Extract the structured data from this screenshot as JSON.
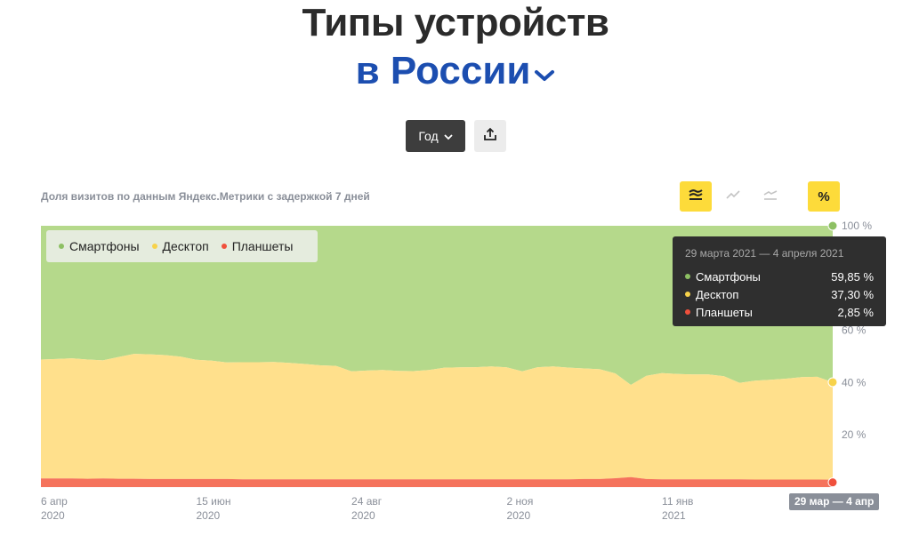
{
  "header": {
    "title": "Типы устройств",
    "region": "в России"
  },
  "controls": {
    "period_label": "Год"
  },
  "caption": "Доля визитов по данным Яндекс.Метрики с задержкой 7 дней",
  "view_toggles": {
    "percent_label": "%"
  },
  "colors": {
    "smartphones": "#b5d98b",
    "desktop": "#ffe08c",
    "tablets": "#f5735c",
    "dot_smartphones": "#8dc063",
    "dot_desktop": "#f7d24a",
    "dot_tablets": "#f0503c"
  },
  "tooltip": {
    "date": "29 марта 2021 — 4 апреля 2021",
    "rows": [
      {
        "name": "Смартфоны",
        "value": "59,85 %"
      },
      {
        "name": "Десктоп",
        "value": "37,30 %"
      },
      {
        "name": "Планшеты",
        "value": "2,85 %"
      }
    ]
  },
  "chart_data": {
    "type": "area",
    "stacked": true,
    "normalized_percent": true,
    "x_range": [
      "2020-04-06",
      "2021-03-29"
    ],
    "x": [
      "2020-04-06",
      "2020-04-13",
      "2020-04-20",
      "2020-04-27",
      "2020-05-04",
      "2020-05-11",
      "2020-05-18",
      "2020-05-25",
      "2020-06-01",
      "2020-06-08",
      "2020-06-15",
      "2020-06-22",
      "2020-06-29",
      "2020-07-06",
      "2020-07-13",
      "2020-07-20",
      "2020-07-27",
      "2020-08-03",
      "2020-08-10",
      "2020-08-17",
      "2020-08-24",
      "2020-08-31",
      "2020-09-07",
      "2020-09-14",
      "2020-09-21",
      "2020-09-28",
      "2020-10-05",
      "2020-10-12",
      "2020-10-19",
      "2020-10-26",
      "2020-11-02",
      "2020-11-09",
      "2020-11-16",
      "2020-11-23",
      "2020-11-30",
      "2020-12-07",
      "2020-12-14",
      "2020-12-21",
      "2020-12-28",
      "2021-01-04",
      "2021-01-11",
      "2021-01-18",
      "2021-01-25",
      "2021-02-01",
      "2021-02-08",
      "2021-02-15",
      "2021-02-22",
      "2021-03-01",
      "2021-03-08",
      "2021-03-15",
      "2021-03-22",
      "2021-03-29"
    ],
    "series": [
      {
        "name": "Планшеты",
        "values": [
          3.3,
          3.3,
          3.3,
          3.2,
          3.3,
          3.2,
          3.2,
          3.1,
          3.1,
          3.1,
          3.1,
          3.1,
          3.1,
          3.0,
          3.0,
          3.0,
          3.0,
          3.0,
          3.0,
          3.0,
          3.0,
          3.0,
          3.0,
          3.0,
          3.0,
          3.0,
          3.0,
          3.0,
          3.0,
          3.0,
          3.0,
          3.0,
          3.0,
          3.0,
          3.0,
          3.1,
          3.1,
          3.4,
          3.8,
          3.1,
          3.0,
          3.0,
          3.0,
          3.0,
          3.0,
          3.0,
          2.9,
          2.9,
          2.9,
          2.9,
          2.9,
          2.85
        ]
      },
      {
        "name": "Десктоп",
        "values": [
          45.5,
          45.7,
          46.0,
          45.6,
          45.2,
          46.6,
          47.8,
          47.7,
          47.4,
          46.8,
          45.6,
          45.3,
          44.6,
          44.8,
          44.8,
          44.9,
          44.5,
          44.1,
          43.6,
          43.4,
          41.3,
          41.6,
          41.8,
          41.5,
          41.4,
          41.8,
          42.7,
          42.8,
          42.9,
          43.2,
          42.8,
          41.3,
          42.9,
          43.2,
          42.7,
          42.3,
          42.0,
          40.1,
          35.3,
          39.5,
          40.6,
          40.3,
          40.1,
          40.1,
          39.4,
          36.9,
          37.8,
          38.2,
          38.6,
          39.2,
          39.3,
          37.3
        ]
      },
      {
        "name": "Смартфоны",
        "values": [
          51.2,
          51.0,
          50.7,
          51.2,
          51.5,
          50.2,
          49.0,
          49.2,
          49.5,
          50.1,
          51.3,
          51.6,
          52.3,
          52.2,
          52.2,
          52.1,
          52.5,
          52.9,
          53.4,
          53.6,
          55.7,
          55.4,
          55.2,
          55.5,
          55.6,
          55.2,
          54.3,
          54.2,
          54.1,
          53.8,
          54.2,
          55.7,
          54.1,
          53.8,
          54.3,
          54.6,
          54.9,
          56.5,
          60.9,
          57.4,
          56.4,
          56.7,
          56.9,
          56.9,
          57.6,
          60.1,
          59.3,
          58.9,
          58.5,
          57.9,
          57.8,
          59.85
        ]
      }
    ],
    "ylim": [
      0,
      100
    ],
    "y_ticks": [
      "100 %",
      "60 %",
      "40 %",
      "20 %"
    ],
    "x_ticks": [
      {
        "label": "6 апр",
        "year": "2020",
        "date": "2020-04-06"
      },
      {
        "label": "15 июн",
        "year": "2020",
        "date": "2020-06-15"
      },
      {
        "label": "24 авг",
        "year": "2020",
        "date": "2020-08-24"
      },
      {
        "label": "2 ноя",
        "year": "2020",
        "date": "2020-11-02"
      },
      {
        "label": "11 янв",
        "year": "2021",
        "date": "2021-01-11"
      }
    ],
    "highlighted_x_label": "29 мар — 4 апр",
    "legend_position": "top-left",
    "grid": false
  }
}
